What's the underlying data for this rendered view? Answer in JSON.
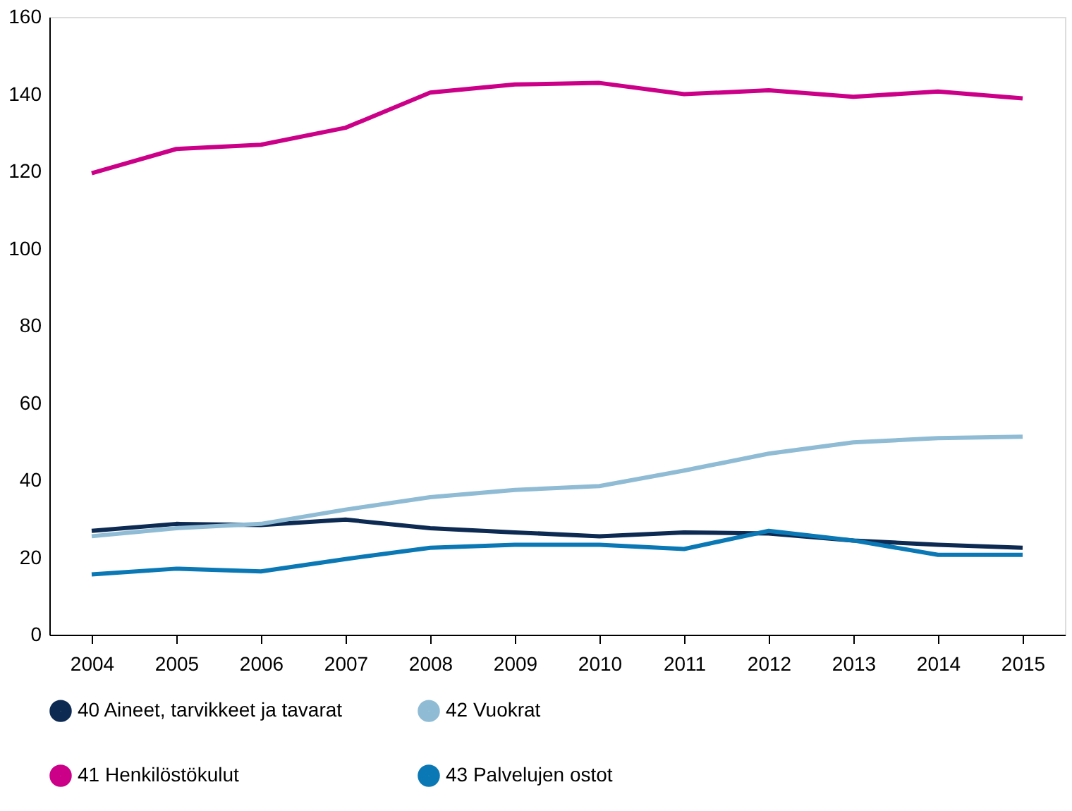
{
  "chart_data": {
    "type": "line",
    "categories": [
      "2004",
      "2005",
      "2006",
      "2007",
      "2008",
      "2009",
      "2010",
      "2011",
      "2012",
      "2013",
      "2014",
      "2015"
    ],
    "ylim": [
      0,
      160
    ],
    "yticks": [
      0,
      20,
      40,
      60,
      80,
      100,
      120,
      140,
      160
    ],
    "grid": false,
    "legend": "bottom",
    "marker": "none",
    "line_style": "solid",
    "series": [
      {
        "name": "40 Aineet, tarvikkeet ja tavarat",
        "color": "#0d2a52",
        "values": [
          26.9,
          28.7,
          28.4,
          29.8,
          27.6,
          26.5,
          25.5,
          26.5,
          26.2,
          24.4,
          23.3,
          22.5
        ]
      },
      {
        "name": "42 Vuokrat",
        "color": "#8fbcd4",
        "values": [
          25.5,
          27.6,
          28.7,
          32.4,
          35.6,
          37.5,
          38.5,
          42.5,
          46.9,
          49.8,
          50.9,
          51.3
        ]
      },
      {
        "name": "41 Henkilöstökulut",
        "color": "#cc0088",
        "values": [
          119.5,
          125.8,
          126.9,
          131.3,
          140.4,
          142.5,
          142.9,
          140,
          141,
          139.3,
          140.7,
          138.9
        ]
      },
      {
        "name": "43 Palvelujen ostot",
        "color": "#0a78b4",
        "values": [
          15.6,
          17.1,
          16.4,
          19.6,
          22.5,
          23.3,
          23.3,
          22.2,
          26.9,
          24.4,
          20.7,
          20.7
        ]
      }
    ]
  }
}
